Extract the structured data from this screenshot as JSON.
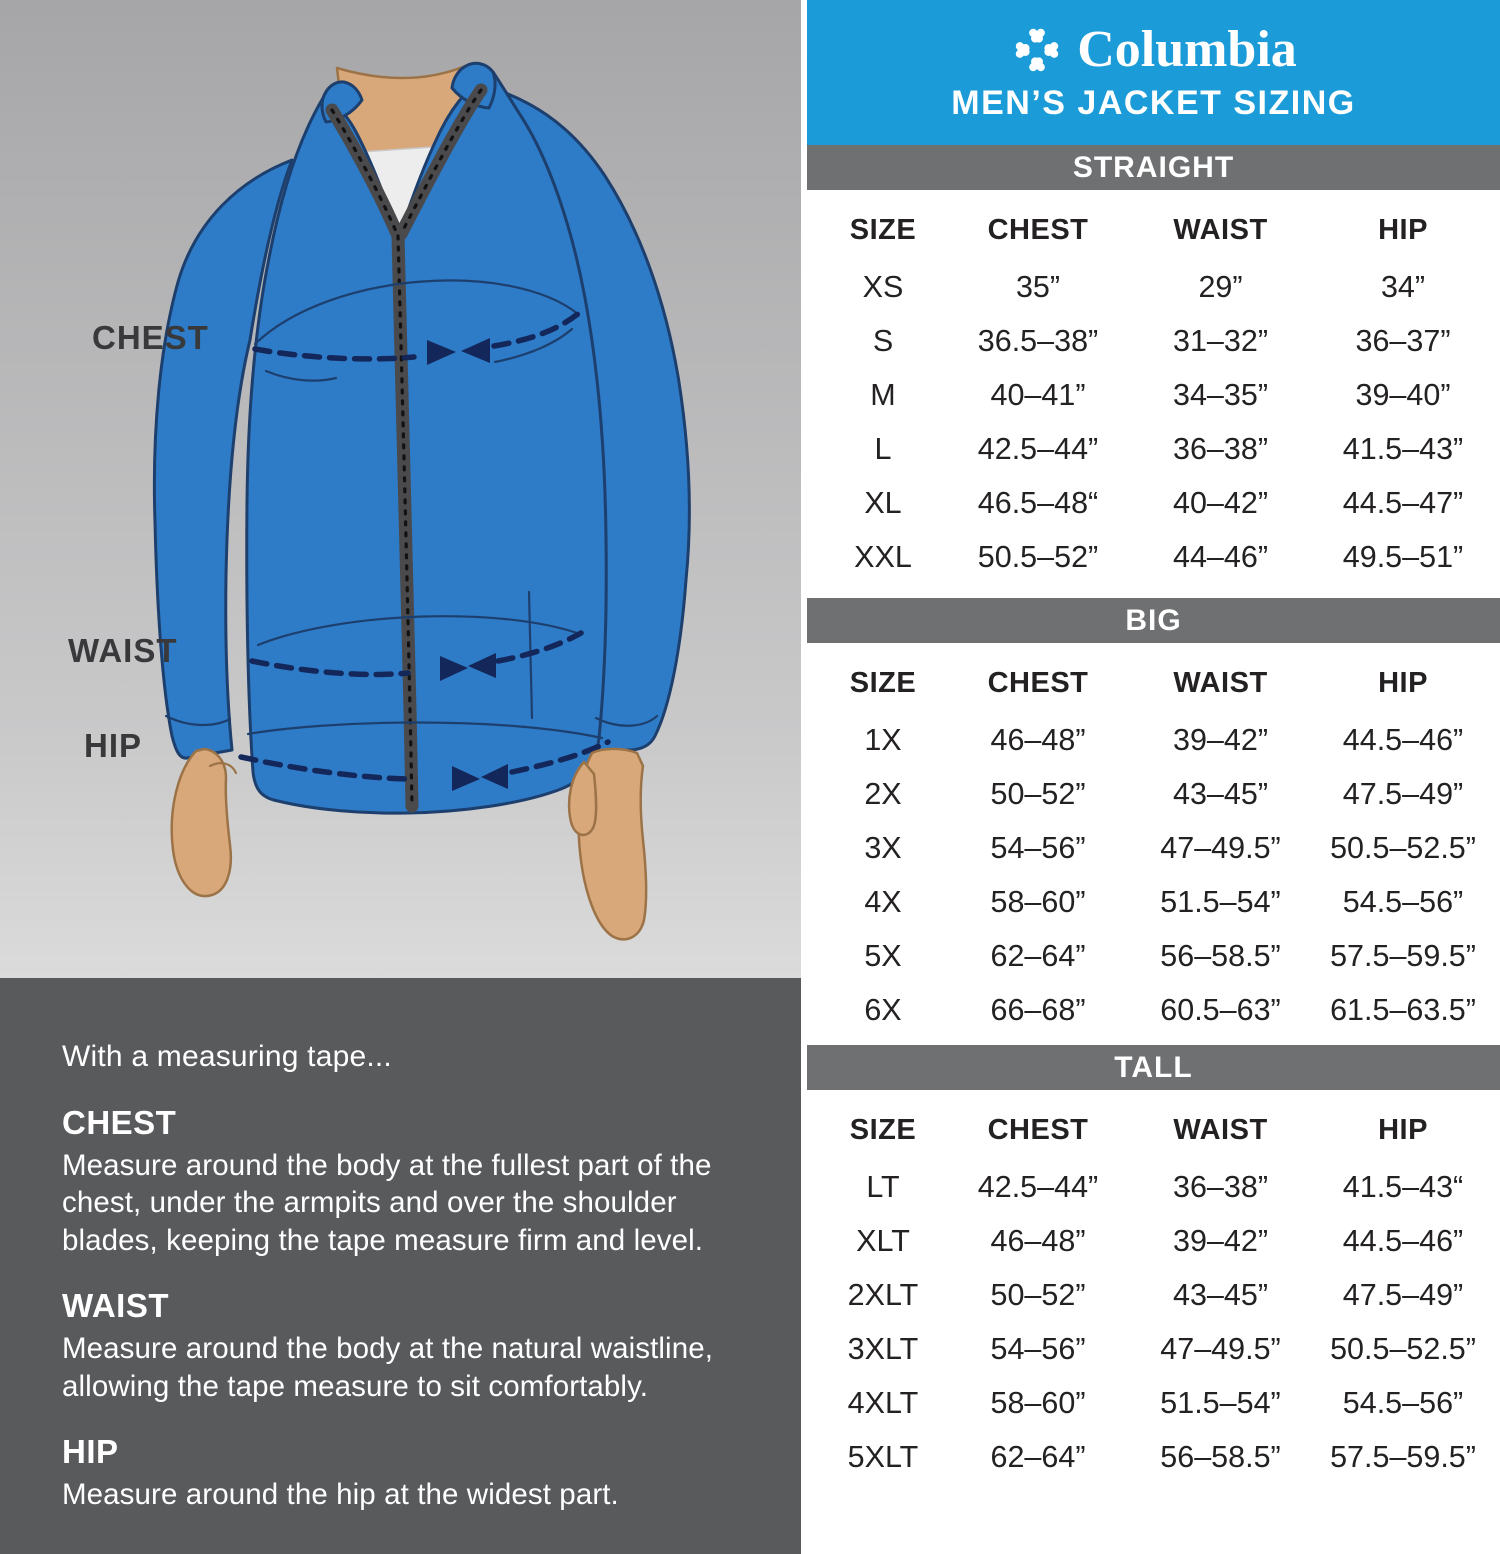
{
  "brand": {
    "name": "Columbia"
  },
  "header": {
    "title": "MEN’S JACKET SIZING"
  },
  "size_tables": [
    {
      "label": "STRAIGHT",
      "columns": [
        "SIZE",
        "CHEST",
        "WAIST",
        "HIP"
      ],
      "rows": [
        [
          "XS",
          "35”",
          "29”",
          "34”"
        ],
        [
          "S",
          "36.5–38”",
          "31–32”",
          "36–37”"
        ],
        [
          "M",
          "40–41”",
          "34–35”",
          "39–40”"
        ],
        [
          "L",
          "42.5–44”",
          "36–38”",
          "41.5–43”"
        ],
        [
          "XL",
          "46.5–48“",
          "40–42”",
          "44.5–47”"
        ],
        [
          "XXL",
          "50.5–52”",
          "44–46”",
          "49.5–51”"
        ]
      ]
    },
    {
      "label": "BIG",
      "columns": [
        "SIZE",
        "CHEST",
        "WAIST",
        "HIP"
      ],
      "rows": [
        [
          "1X",
          "46–48”",
          "39–42”",
          "44.5–46”"
        ],
        [
          "2X",
          "50–52”",
          "43–45”",
          "47.5–49”"
        ],
        [
          "3X",
          "54–56”",
          "47–49.5”",
          "50.5–52.5”"
        ],
        [
          "4X",
          "58–60”",
          "51.5–54”",
          "54.5–56”"
        ],
        [
          "5X",
          "62–64”",
          "56–58.5”",
          "57.5–59.5”"
        ],
        [
          "6X",
          "66–68”",
          "60.5–63”",
          "61.5–63.5”"
        ]
      ]
    },
    {
      "label": "TALL",
      "columns": [
        "SIZE",
        "CHEST",
        "WAIST",
        "HIP"
      ],
      "rows": [
        [
          "LT",
          "42.5–44”",
          "36–38”",
          "41.5–43“"
        ],
        [
          "XLT",
          "46–48”",
          "39–42”",
          "44.5–46”"
        ],
        [
          "2XLT",
          "50–52”",
          "43–45”",
          "47.5–49”"
        ],
        [
          "3XLT",
          "54–56”",
          "47–49.5”",
          "50.5–52.5”"
        ],
        [
          "4XLT",
          "58–60”",
          "51.5–54”",
          "54.5–56”"
        ],
        [
          "5XLT",
          "62–64”",
          "56–58.5”",
          "57.5–59.5”"
        ]
      ]
    }
  ],
  "figure": {
    "labels": {
      "chest": "CHEST",
      "waist": "WAIST",
      "hip": "HIP"
    }
  },
  "instructions": {
    "intro": "With a measuring tape...",
    "sections": [
      {
        "heading": "CHEST",
        "body": "Measure around the body at the fullest part of the chest, under the armpits and over the shoulder blades, keeping the tape measure firm and level."
      },
      {
        "heading": "WAIST",
        "body": "Measure around the body at the natural waistline, allowing the tape measure to sit comfortably."
      },
      {
        "heading": "HIP",
        "body": "Measure around the hip at the widest part."
      }
    ]
  },
  "colors": {
    "header_blue": "#1b9cd8",
    "category_band_gray": "#6f7072",
    "instructions_panel_gray": "#595a5c",
    "table_text": "#242122",
    "jacket_blue": "#2e7bc7",
    "outline_navy": "#1d3f6e",
    "measure_line_navy": "#14275a",
    "skin_tan": "#d8a87b",
    "shirt_white": "#ededed",
    "zipper_gray": "#4a4a4c",
    "background_gray_top": "#a6a6a8",
    "background_gray_bottom": "#dbdbdb"
  }
}
